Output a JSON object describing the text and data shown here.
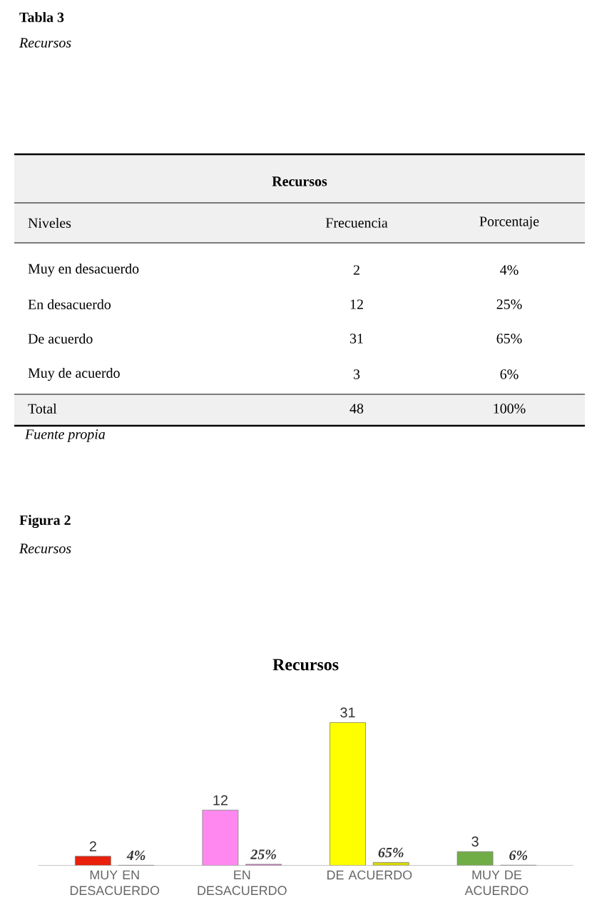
{
  "chart_data": {
    "type": "bar",
    "title": "Recursos",
    "categories": [
      "MUY EN DESACUERDO",
      "EN DESACUERDO",
      "DE ACUERDO",
      "MUY DE ACUERDO"
    ],
    "series": [
      {
        "colors": [
          "#e8200c",
          "#ff88f0",
          "#ffff00",
          "#70ad47"
        ],
        "values": [
          2,
          12,
          31,
          3
        ],
        "value_labels": [
          "2",
          "12",
          "31",
          "3"
        ]
      },
      {
        "colors": [
          "#c0180a",
          "#e070d0",
          "#d8d800",
          "#5a9a38"
        ],
        "values": [
          0.04,
          0.25,
          0.65,
          0.06
        ],
        "value_labels": [
          "4%",
          "25%",
          "65%",
          "6%"
        ]
      }
    ],
    "annotations": [
      "Tabla 3",
      "Recursos",
      "Recursos",
      "Niveles",
      "Frecuencia",
      "Porcentaje",
      "Muy en desacuerdo",
      "2",
      "4%",
      "En desacuerdo",
      "12",
      "25%",
      "De acuerdo",
      "31",
      "65%",
      "Muy de acuerdo",
      "3",
      "6%",
      "Total",
      "48",
      "100%",
      "Fuente propia",
      "Figura 2",
      "Recursos"
    ]
  }
}
